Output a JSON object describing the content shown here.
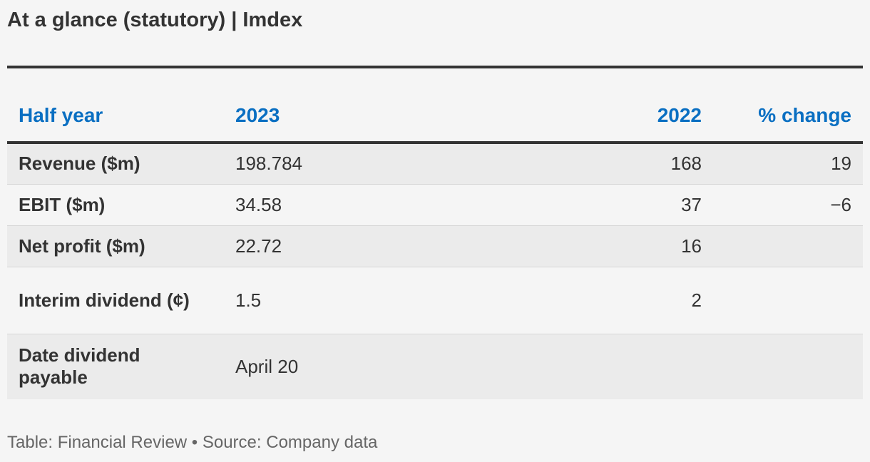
{
  "title": "At a glance (statutory) | Imdex",
  "table": {
    "headers": [
      "Half year",
      "2023",
      "2022",
      "% change"
    ],
    "rows": [
      {
        "label": "Revenue ($m)",
        "y2023": "198.784",
        "y2022": "168",
        "change": "19"
      },
      {
        "label": "EBIT ($m)",
        "y2023": "34.58",
        "y2022": "37",
        "change": "−6"
      },
      {
        "label": "Net profit ($m)",
        "y2023": "22.72",
        "y2022": "16",
        "change": ""
      },
      {
        "label": "Interim dividend (¢)",
        "y2023": "1.5",
        "y2022": "2",
        "change": ""
      },
      {
        "label": "Date dividend payable",
        "y2023": "April 20",
        "y2022": "",
        "change": ""
      }
    ]
  },
  "footer": "Table: Financial Review • Source: Company data",
  "colors": {
    "header_text": "#0a6fc2",
    "body_text": "#333333",
    "shaded_row": "#ebebeb",
    "background": "#f5f5f5"
  }
}
